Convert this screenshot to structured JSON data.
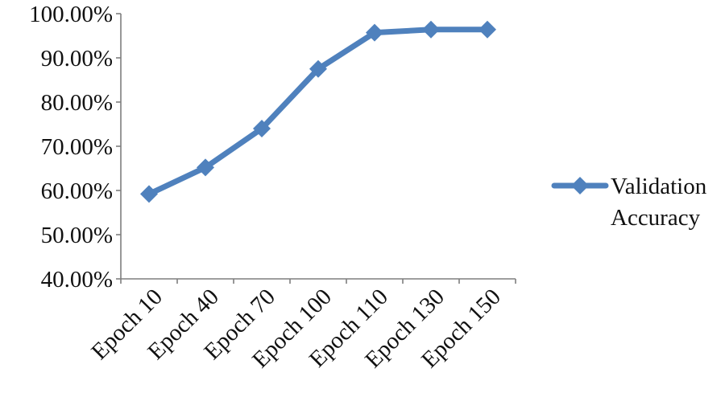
{
  "chart_data": {
    "type": "line",
    "title": "",
    "xlabel": "",
    "ylabel": "",
    "categories": [
      "Epoch 10",
      "Epoch 40",
      "Epoch 70",
      "Epoch 100",
      "Epoch 110",
      "Epoch 130",
      "Epoch 150"
    ],
    "series": [
      {
        "name": "Validation Accuracy",
        "values": [
          59.2,
          65.2,
          74.0,
          87.5,
          95.7,
          96.4,
          96.4
        ],
        "color": "#4F81BD",
        "marker": "diamond"
      }
    ],
    "ylim": [
      40,
      100
    ],
    "yticks": [
      40,
      50,
      60,
      70,
      80,
      90,
      100
    ],
    "ytick_labels": [
      "40.00%",
      "50.00%",
      "60.00%",
      "70.00%",
      "80.00%",
      "90.00%",
      "100.00%"
    ],
    "grid": false,
    "legend": {
      "position": "right",
      "lines": [
        "Validation",
        "Accuracy"
      ]
    }
  }
}
